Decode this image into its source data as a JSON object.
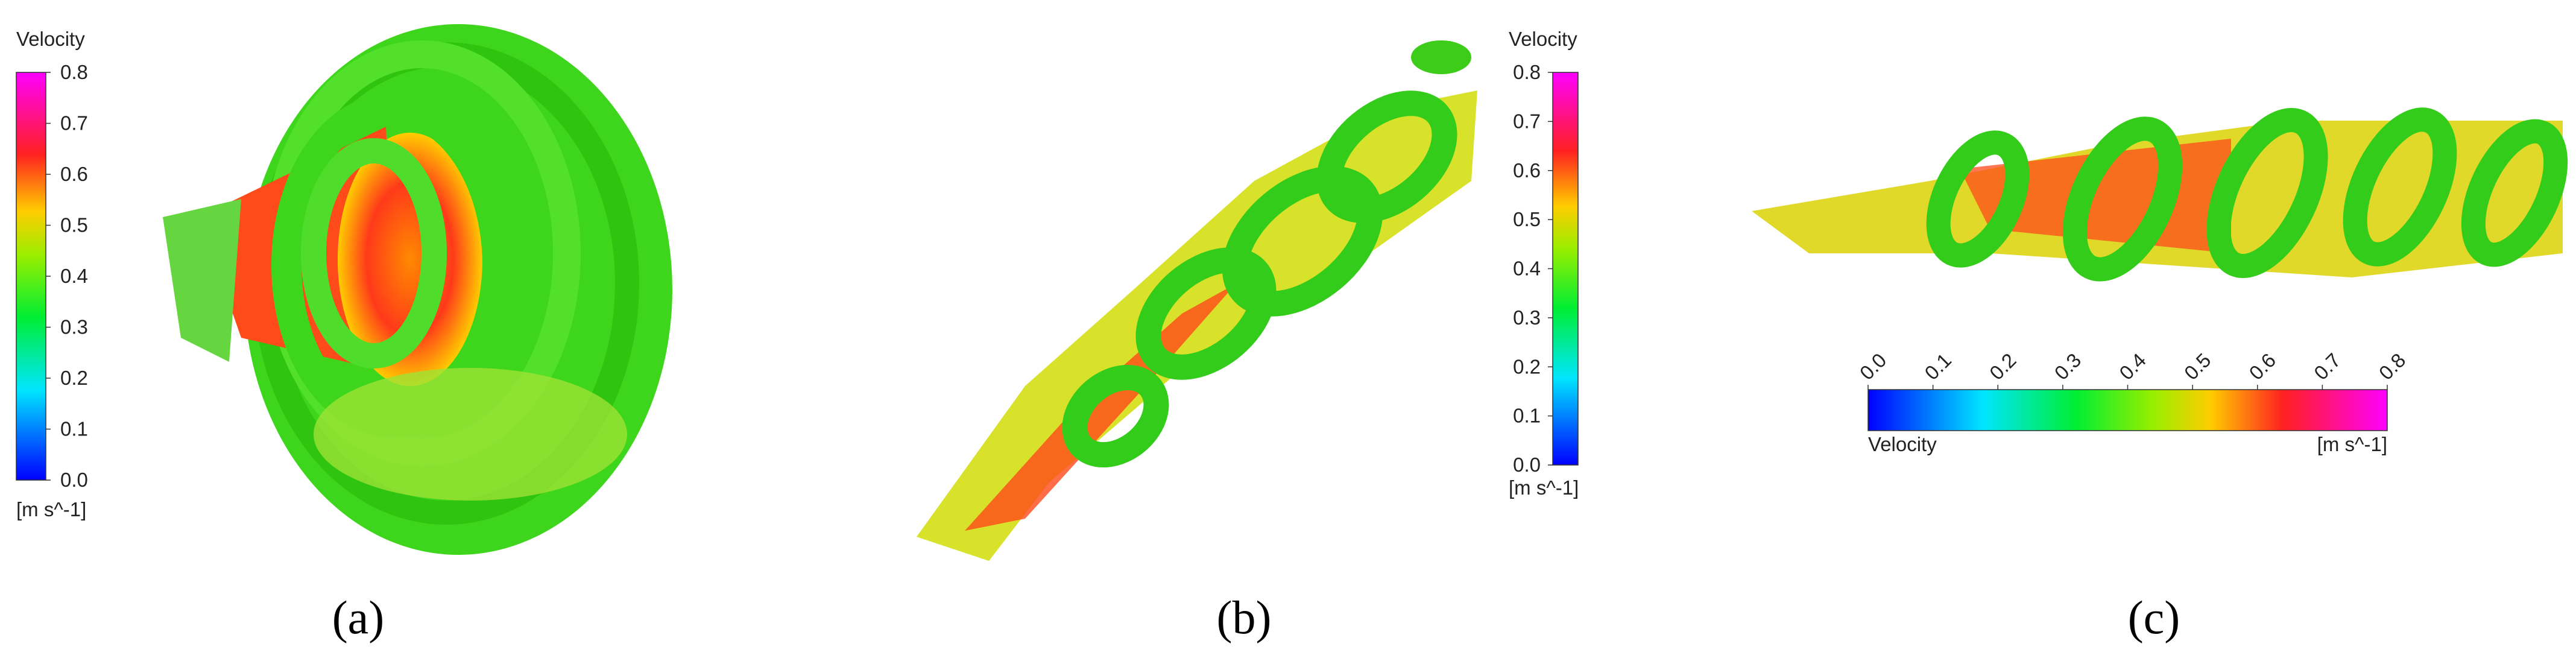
{
  "panels": [
    {
      "label": "(a)",
      "colorbar": {
        "title": "Velocity",
        "unit": "[m s^-1]",
        "range": [
          0,
          0.8
        ],
        "ticks": [
          {
            "value": 0,
            "label": "0.0"
          },
          0.1,
          0.2,
          0.3,
          0.4,
          0.5,
          0.6,
          0.7,
          0.8
        ]
      }
    },
    {
      "label": "(b)",
      "colorbar": {
        "title": "Velocity",
        "unit": "[m s^-1]",
        "range": [
          0,
          0.8
        ],
        "ticks": [
          {
            "value": 0,
            "label": "0.0"
          },
          0.1,
          0.2,
          0.3,
          0.4,
          0.5,
          0.6,
          0.7,
          0.8
        ]
      }
    },
    {
      "label": "(c)",
      "colorbar": {
        "title": "Velocity",
        "unit": "[m s^-1]",
        "range": [
          0,
          0.8
        ],
        "ticks": [
          {
            "value": 0,
            "label": "0.0"
          },
          0.1,
          0.2,
          0.3,
          0.4,
          0.5,
          0.6,
          0.7,
          0.8
        ]
      }
    }
  ]
}
